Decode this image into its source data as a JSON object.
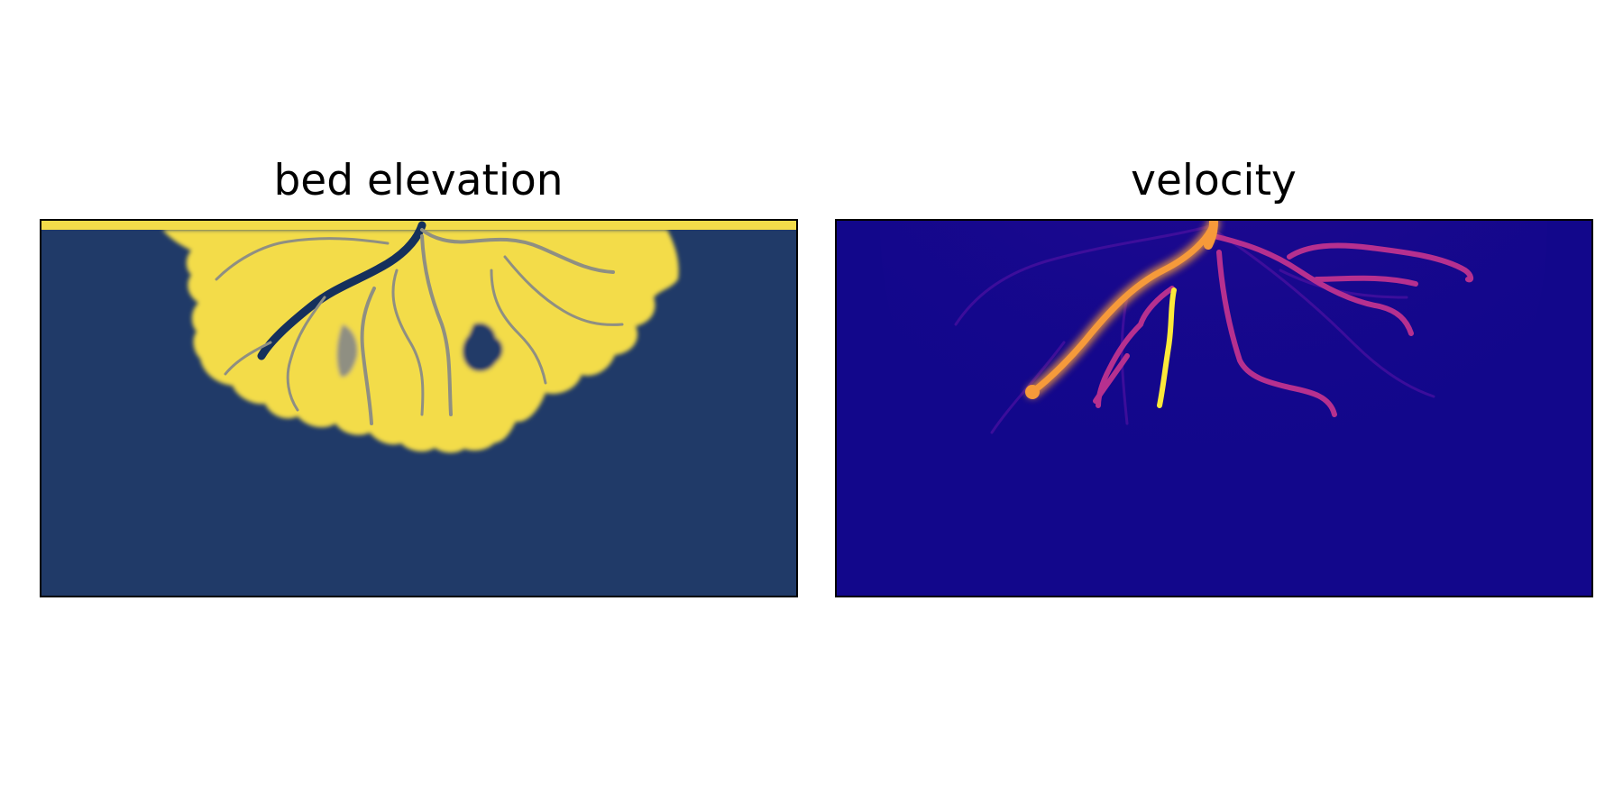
{
  "chart_data": [
    {
      "type": "heatmap",
      "title": "bed elevation",
      "colormap": "cividis",
      "colors": {
        "background": "#203a68",
        "deposit": "#f3dc4a",
        "channel": "#8f8f82",
        "deep_channel": "#15305c"
      },
      "xticks": "none",
      "yticks": "none",
      "grid": false,
      "legend": "none",
      "colorbar": false
    },
    {
      "type": "heatmap",
      "title": "velocity",
      "colormap": "plasma",
      "colors": {
        "background": "#12078b",
        "low": "#4a10a0",
        "mid": "#b6308f",
        "high": "#f69a3a",
        "peak": "#fde93a"
      },
      "xticks": "none",
      "yticks": "none",
      "grid": false,
      "legend": "none",
      "colorbar": false
    }
  ]
}
